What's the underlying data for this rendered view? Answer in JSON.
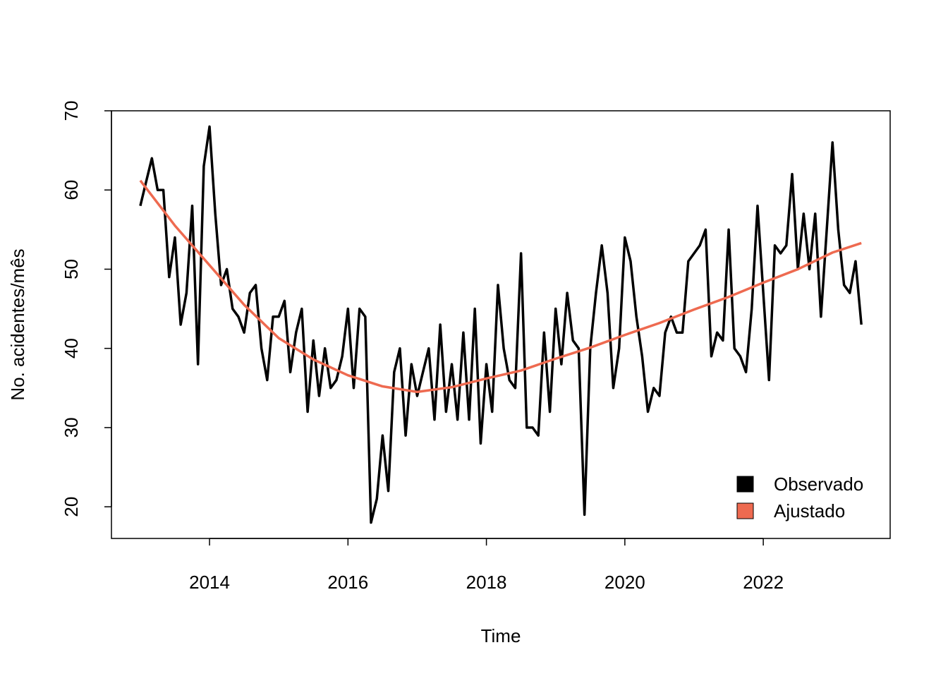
{
  "chart_data": {
    "type": "line",
    "x_label": "Time",
    "y_label": "No. acidentes/mês",
    "xlim": [
      2012.583,
      2023.833
    ],
    "ylim": [
      16,
      70
    ],
    "xticks": [
      2014,
      2016,
      2018,
      2020,
      2022
    ],
    "yticks": [
      20,
      30,
      40,
      50,
      60,
      70
    ],
    "legend_position": "bottomright",
    "series": [
      {
        "name": "Observado",
        "color": "#000000",
        "x": [
          2013,
          2013.083,
          2013.167,
          2013.25,
          2013.333,
          2013.417,
          2013.5,
          2013.583,
          2013.667,
          2013.75,
          2013.833,
          2013.917,
          2014,
          2014.083,
          2014.167,
          2014.25,
          2014.333,
          2014.417,
          2014.5,
          2014.583,
          2014.667,
          2014.75,
          2014.833,
          2014.917,
          2015,
          2015.083,
          2015.167,
          2015.25,
          2015.333,
          2015.417,
          2015.5,
          2015.583,
          2015.667,
          2015.75,
          2015.833,
          2015.917,
          2016,
          2016.083,
          2016.167,
          2016.25,
          2016.333,
          2016.417,
          2016.5,
          2016.583,
          2016.667,
          2016.75,
          2016.833,
          2016.917,
          2017,
          2017.083,
          2017.167,
          2017.25,
          2017.333,
          2017.417,
          2017.5,
          2017.583,
          2017.667,
          2017.75,
          2017.833,
          2017.917,
          2018,
          2018.083,
          2018.167,
          2018.25,
          2018.333,
          2018.417,
          2018.5,
          2018.583,
          2018.667,
          2018.75,
          2018.833,
          2018.917,
          2019,
          2019.083,
          2019.167,
          2019.25,
          2019.333,
          2019.417,
          2019.5,
          2019.583,
          2019.667,
          2019.75,
          2019.833,
          2019.917,
          2020,
          2020.083,
          2020.167,
          2020.25,
          2020.333,
          2020.417,
          2020.5,
          2020.583,
          2020.667,
          2020.75,
          2020.833,
          2020.917,
          2021,
          2021.083,
          2021.167,
          2021.25,
          2021.333,
          2021.417,
          2021.5,
          2021.583,
          2021.667,
          2021.75,
          2021.833,
          2021.917,
          2022,
          2022.083,
          2022.167,
          2022.25,
          2022.333,
          2022.417,
          2022.5,
          2022.583,
          2022.667,
          2022.75,
          2022.833,
          2022.917,
          2023,
          2023.083,
          2023.167,
          2023.25,
          2023.333,
          2023.417
        ],
        "values": [
          58,
          61,
          64,
          60,
          60,
          49,
          54,
          43,
          47,
          58,
          38,
          63,
          68,
          57,
          48,
          50,
          45,
          44,
          42,
          47,
          48,
          40,
          36,
          44,
          44,
          46,
          37,
          42,
          45,
          32,
          41,
          34,
          40,
          35,
          36,
          39,
          45,
          35,
          45,
          44,
          18,
          21,
          29,
          22,
          37,
          40,
          29,
          38,
          34,
          37,
          40,
          31,
          43,
          32,
          38,
          31,
          42,
          31,
          45,
          28,
          38,
          32,
          48,
          40,
          36,
          35,
          52,
          30,
          30,
          29,
          42,
          32,
          45,
          38,
          47,
          41,
          40,
          19,
          40,
          47,
          53,
          47,
          35,
          40,
          54,
          51,
          44,
          39,
          32,
          35,
          34,
          42,
          44,
          42,
          42,
          51,
          52,
          53,
          55,
          39,
          42,
          41,
          55,
          40,
          39,
          37,
          45,
          58,
          47,
          36,
          53,
          52,
          53,
          62,
          50,
          57,
          50,
          57,
          44,
          55,
          66,
          55,
          48,
          47,
          51,
          43
        ]
      },
      {
        "name": "Ajustado",
        "color": "#EE6A50",
        "x": [
          2013,
          2013.5,
          2014,
          2014.5,
          2015,
          2015.5,
          2016,
          2016.5,
          2017,
          2017.5,
          2018,
          2018.5,
          2019,
          2019.5,
          2020,
          2020.5,
          2021,
          2021.5,
          2022,
          2022.5,
          2023,
          2023.417
        ],
        "values": [
          61.2,
          55.5,
          50.5,
          45.5,
          41.3,
          38.6,
          36.6,
          35.2,
          34.5,
          35.1,
          36.2,
          37.2,
          38.7,
          40.1,
          41.7,
          43.2,
          44.9,
          46.5,
          48.3,
          50.0,
          52.1,
          53.3
        ]
      }
    ]
  }
}
